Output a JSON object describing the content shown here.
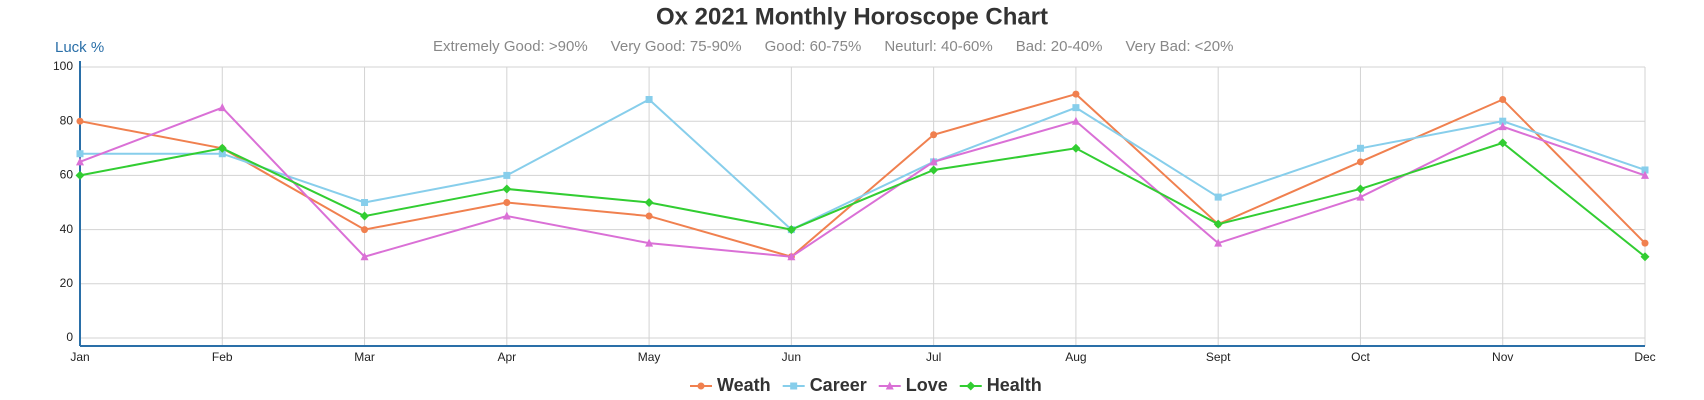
{
  "chart_data": {
    "type": "line",
    "title": "Ox 2021 Monthly Horoscope Chart",
    "subtitle_items": [
      "Extremely Good: >90%",
      "Very Good: 75-90%",
      "Good: 60-75%",
      "Neuturl: 40-60%",
      "Bad: 20-40%",
      "Very Bad: <20%"
    ],
    "y_label": "Luck %",
    "categories": [
      "Jan",
      "Feb",
      "Mar",
      "Apr",
      "May",
      "Jun",
      "Jul",
      "Aug",
      "Sept",
      "Oct",
      "Nov",
      "Dec"
    ],
    "series": [
      {
        "name": "Weath",
        "color": "#f0804f",
        "marker": "circle",
        "values": [
          80,
          70,
          40,
          50,
          45,
          30,
          75,
          90,
          42,
          65,
          88,
          35
        ]
      },
      {
        "name": "Career",
        "color": "#87ceeb",
        "marker": "square",
        "values": [
          68,
          68,
          50,
          60,
          88,
          40,
          65,
          85,
          52,
          70,
          80,
          62
        ]
      },
      {
        "name": "Love",
        "color": "#da70d6",
        "marker": "triangle",
        "values": [
          65,
          85,
          30,
          45,
          35,
          30,
          65,
          80,
          35,
          52,
          78,
          60
        ]
      },
      {
        "name": "Health",
        "color": "#32cd32",
        "marker": "diamond",
        "values": [
          60,
          70,
          45,
          55,
          50,
          40,
          62,
          70,
          42,
          55,
          72,
          30
        ]
      }
    ],
    "ylim": [
      0,
      100
    ],
    "yticks": [
      0,
      20,
      40,
      60,
      80,
      100
    ],
    "grid": true
  }
}
